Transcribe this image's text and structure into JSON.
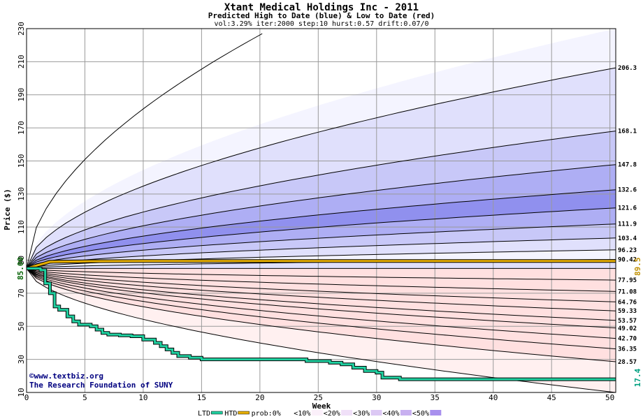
{
  "chart_data": {
    "type": "area",
    "title": "Xtant Medical Holdings Inc - 2011",
    "subtitle": "Predicted High to Date (blue) &  Low to Date (red)",
    "params": "vol:3.29% iter:2000 step:10 hurst:0.57 drift:0.07/0",
    "xlabel": "Week",
    "ylabel": "Price ($)",
    "xlim": [
      0,
      50.5
    ],
    "ylim": [
      10,
      230
    ],
    "x_ticks": [
      0,
      5,
      10,
      15,
      20,
      25,
      30,
      35,
      40,
      45,
      50
    ],
    "y_ticks": [
      10,
      30,
      50,
      70,
      90,
      110,
      130,
      150,
      170,
      190,
      210,
      230
    ],
    "grid": true,
    "start_price": 85,
    "start_label": "85.00",
    "current_price_label": "89.5",
    "current_price": 89.5,
    "ltd_label": "17.4",
    "copyright": "©www.textbiz.org",
    "org": "The Research Foundation of SUNY",
    "high_percentiles": [
      {
        "label": "206.3",
        "end": 206.3
      },
      {
        "label": "168.1",
        "end": 168.1
      },
      {
        "label": "147.8",
        "end": 147.8
      },
      {
        "label": "132.6",
        "end": 132.6
      },
      {
        "label": "121.6",
        "end": 121.6
      },
      {
        "label": "111.9",
        "end": 111.9
      },
      {
        "label": "103.4",
        "end": 103.4
      },
      {
        "label": "96.23",
        "end": 96.23
      },
      {
        "label": "90.42",
        "end": 90.42
      }
    ],
    "low_percentiles": [
      {
        "label": "77.95",
        "end": 77.95
      },
      {
        "label": "71.08",
        "end": 71.08
      },
      {
        "label": "64.76",
        "end": 64.76
      },
      {
        "label": "59.33",
        "end": 59.33
      },
      {
        "label": "53.57",
        "end": 53.57
      },
      {
        "label": "49.02",
        "end": 49.02
      },
      {
        "label": "42.70",
        "end": 42.7
      },
      {
        "label": "36.35",
        "end": 36.35
      },
      {
        "label": "28.57",
        "end": 28.57
      }
    ],
    "outer_high_end": 230,
    "outer_low_end": 10,
    "ltd_series": {
      "name": "LTD",
      "x": [
        0,
        1.2,
        1.6,
        2,
        2.4,
        2.8,
        3.5,
        4,
        4.5,
        5,
        5.5,
        6,
        6.5,
        7,
        8,
        9,
        10,
        11,
        11.5,
        12,
        12.5,
        13,
        14,
        15,
        16,
        18,
        20,
        22,
        24,
        26,
        27,
        28,
        29,
        30,
        30.5,
        32,
        35,
        40,
        45,
        50.5
      ],
      "y": [
        85,
        84,
        76,
        70,
        62,
        60,
        56,
        53,
        51,
        51,
        50,
        48,
        46,
        45,
        44.5,
        44,
        42,
        40,
        38,
        36,
        34,
        32,
        31,
        30,
        30,
        30,
        30,
        30,
        29,
        28,
        27,
        25,
        23,
        22,
        19,
        18,
        18,
        18,
        18,
        18
      ]
    },
    "htd_series": {
      "name": "HTD",
      "x": [
        0,
        1,
        1.5,
        2,
        5,
        10,
        15,
        19,
        20,
        30,
        40,
        50.5
      ],
      "y": [
        85,
        87,
        88,
        89,
        89.3,
        89.5,
        89.5,
        89.5,
        89.5,
        89.5,
        89.5,
        89.5
      ]
    },
    "legend": {
      "items": [
        "LTD",
        "HTD",
        "prob:0%",
        "<10%",
        "<20%",
        "<30%",
        "<40%",
        "<50%"
      ],
      "ltd_color": "#20d0a0",
      "htd_color": "#e8b000",
      "blue_shades": [
        "#f4f4ff",
        "#e0e0fc",
        "#c8c8f8",
        "#aeaef4",
        "#9090ee",
        "#7a7aea"
      ],
      "red_shades": [
        "#fff0f0",
        "#ffe0e0",
        "#ffcaca",
        "#ffb0b0",
        "#ff9090",
        "#ff7878"
      ]
    }
  }
}
